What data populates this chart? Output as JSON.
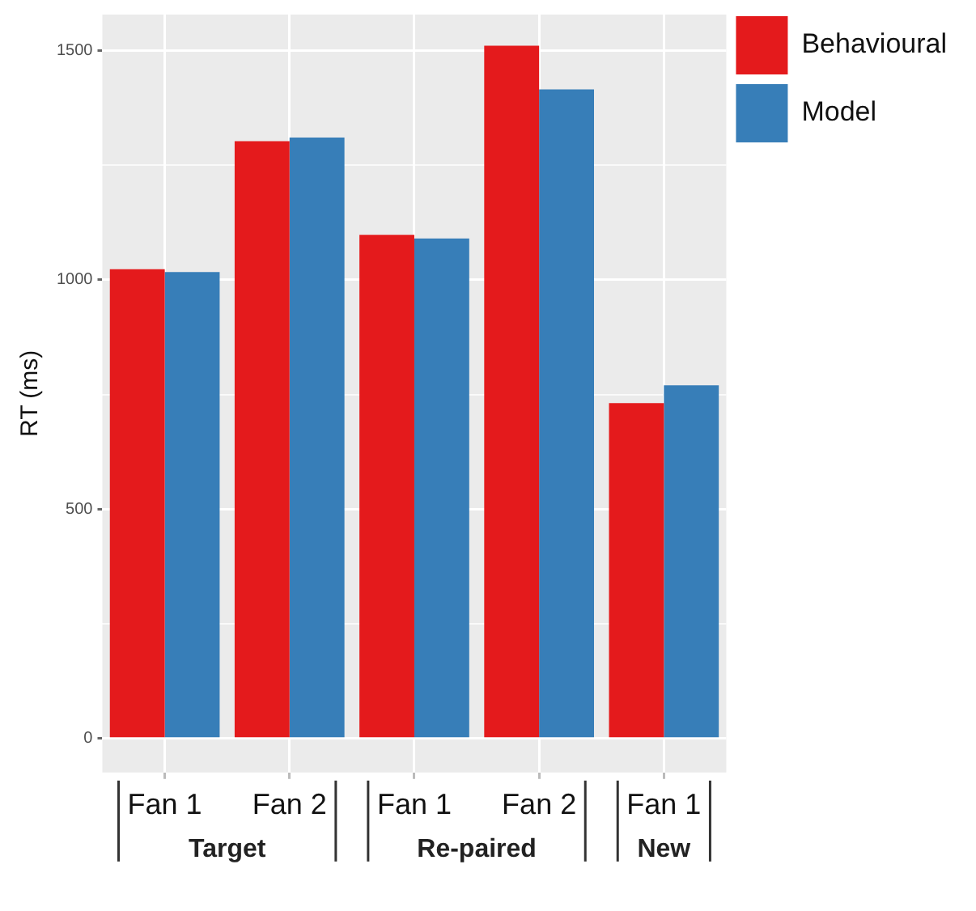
{
  "chart_data": {
    "type": "bar",
    "ylabel": "RT (ms)",
    "categories": [
      "Fan 1",
      "Fan 2",
      "Fan 1",
      "Fan 2",
      "Fan 1"
    ],
    "series": [
      {
        "name": "Behavioural",
        "color": "#e41a1c",
        "values": [
          1023,
          1302,
          1098,
          1510,
          731
        ]
      },
      {
        "name": "Model",
        "color": "#377eb8",
        "values": [
          1017,
          1310,
          1090,
          1415,
          770
        ]
      }
    ],
    "ylim": [
      -74,
      1578
    ],
    "yticks": [
      0,
      {
        "value": 250,
        "label": null
      },
      500,
      {
        "value": 750,
        "label": null
      },
      1000,
      {
        "value": 1250,
        "label": null
      },
      1500
    ],
    "annotations": [
      "Target",
      "Re-paired",
      "New"
    ],
    "grid": true,
    "legend": "right"
  }
}
